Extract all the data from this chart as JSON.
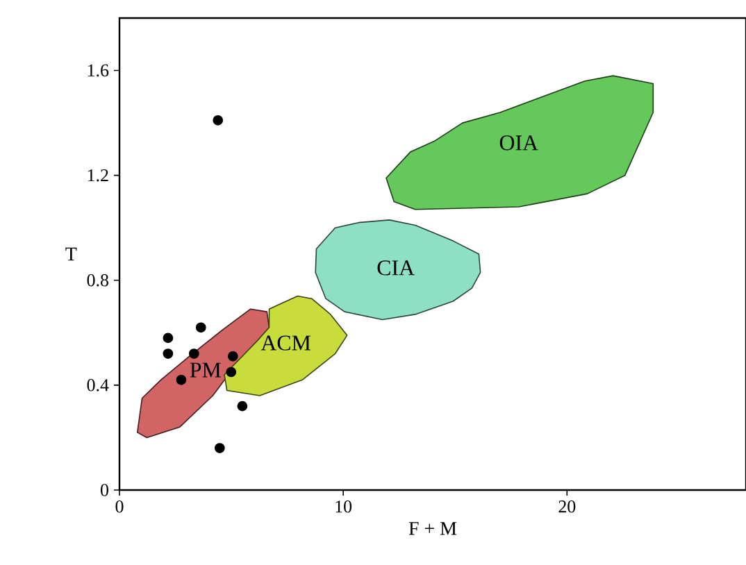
{
  "chart_data": {
    "type": "scatter",
    "xlabel": "F + M",
    "ylabel": "T",
    "xlim": [
      0,
      28
    ],
    "ylim": [
      0,
      1.8
    ],
    "xticks": [
      0,
      10,
      20
    ],
    "yticks": [
      0,
      0.4,
      0.8,
      1.2,
      1.6
    ],
    "grid": false,
    "series": [
      {
        "type": "area",
        "name": "PM",
        "color": "#d26466",
        "x": [
          0.8,
          1.01,
          1.85,
          3.12,
          4.59,
          5.85,
          6.59,
          6.69,
          6.17,
          5.22,
          4.17,
          2.69,
          1.22
        ],
        "values": [
          0.22,
          0.35,
          0.42,
          0.51,
          0.61,
          0.69,
          0.68,
          0.62,
          0.57,
          0.48,
          0.36,
          0.24,
          0.2
        ]
      },
      {
        "type": "area",
        "name": "ACM",
        "color": "#c8dc3c",
        "x": [
          6.69,
          7.96,
          8.59,
          9.43,
          10.17,
          9.64,
          8.17,
          6.27,
          4.8,
          4.69,
          6.17,
          6.69
        ],
        "values": [
          0.69,
          0.74,
          0.73,
          0.67,
          0.59,
          0.52,
          0.42,
          0.36,
          0.38,
          0.44,
          0.57,
          0.62
        ]
      },
      {
        "type": "area",
        "name": "CIA",
        "color": "#8ee0c4",
        "x": [
          8.8,
          9.64,
          10.69,
          12.06,
          13.22,
          14.91,
          16.06,
          16.13,
          15.75,
          14.91,
          13.22,
          11.75,
          10.06,
          9.22,
          8.76
        ],
        "values": [
          0.92,
          1.0,
          1.02,
          1.03,
          1.01,
          0.95,
          0.9,
          0.83,
          0.77,
          0.72,
          0.67,
          0.65,
          0.68,
          0.73,
          0.83
        ]
      },
      {
        "type": "area",
        "name": "OIA",
        "color": "#64c85a",
        "x": [
          11.92,
          13.01,
          14.06,
          15.33,
          17.01,
          18.91,
          20.8,
          22.06,
          23.85,
          23.85,
          22.59,
          20.91,
          17.85,
          13.22,
          12.27
        ],
        "values": [
          1.19,
          1.29,
          1.33,
          1.4,
          1.44,
          1.5,
          1.56,
          1.58,
          1.55,
          1.44,
          1.2,
          1.13,
          1.08,
          1.07,
          1.1
        ]
      },
      {
        "marker": "circle",
        "color": "#000000",
        "x": [
          4.4,
          2.17,
          2.17,
          3.64,
          3.33,
          2.76,
          5.07,
          4.99,
          5.49,
          4.48
        ],
        "values": [
          1.41,
          0.58,
          0.52,
          0.62,
          0.52,
          0.42,
          0.51,
          0.45,
          0.32,
          0.16
        ]
      }
    ]
  }
}
